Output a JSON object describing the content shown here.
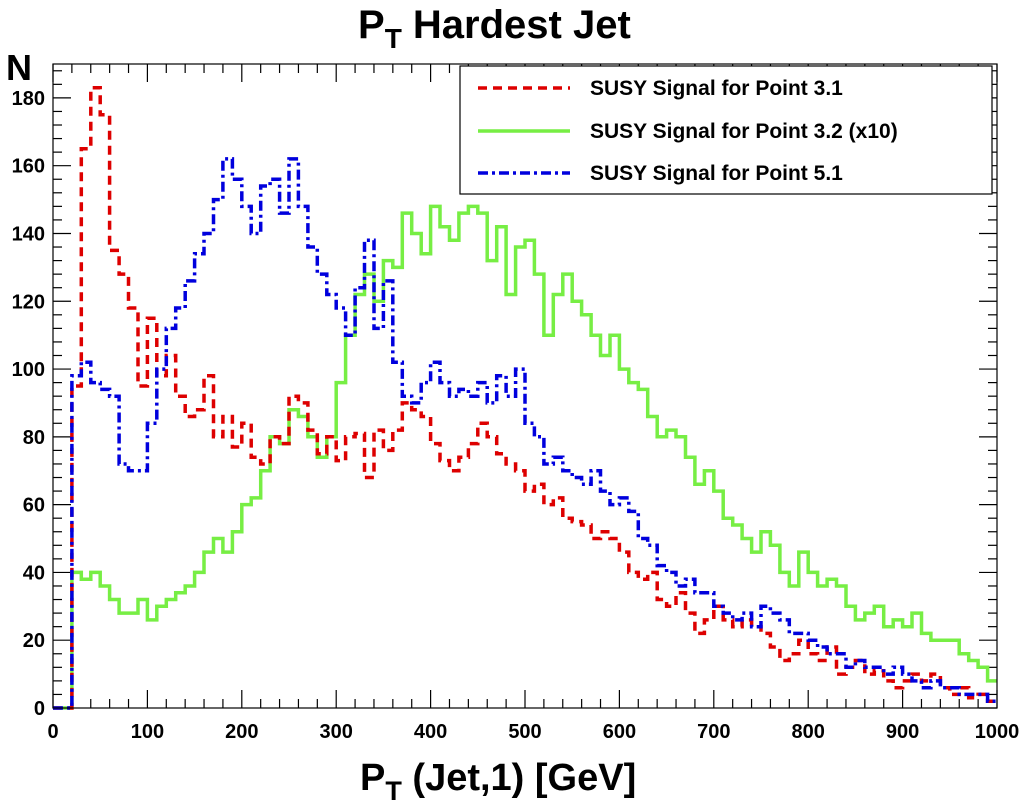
{
  "chart_data": {
    "type": "line",
    "title_main": "P",
    "title_sub": "T",
    "title_rest": " Hardest Jet",
    "title": "PT Hardest Jet",
    "xlabel_main": "P",
    "xlabel_sub": "T",
    "xlabel_rest": " (Jet,1) [GeV]",
    "xlabel": "PT (Jet,1) [GeV]",
    "ylabel": "N",
    "xlim": [
      0,
      1000
    ],
    "ylim": [
      0,
      190
    ],
    "xticks": [
      0,
      100,
      200,
      300,
      400,
      500,
      600,
      700,
      800,
      900,
      1000
    ],
    "xtick_labels": [
      "0",
      "100",
      "200",
      "300",
      "400",
      "500",
      "600",
      "700",
      "800",
      "900",
      "1000"
    ],
    "yticks": [
      0,
      20,
      40,
      60,
      80,
      100,
      120,
      140,
      160,
      180
    ],
    "ytick_labels": [
      "0",
      "20",
      "40",
      "60",
      "80",
      "100",
      "120",
      "140",
      "160",
      "180"
    ],
    "bin_width": 10,
    "legend_position": "top-right",
    "series": [
      {
        "name": "SUSY Signal for Point 3.1",
        "color": "#dd0000",
        "style": "dashed",
        "values": [
          0,
          0,
          95,
          165,
          183,
          175,
          135,
          128,
          118,
          95,
          115,
          98,
          104,
          92,
          86,
          88,
          98,
          80,
          86,
          77,
          84,
          74,
          72,
          80,
          78,
          92,
          90,
          82,
          75,
          80,
          73,
          80,
          81,
          68,
          82,
          76,
          82,
          90,
          88,
          86,
          78,
          73,
          70,
          74,
          78,
          84,
          80,
          75,
          72,
          70,
          64,
          66,
          60,
          62,
          56,
          55,
          54,
          50,
          52,
          50,
          46,
          40,
          38,
          40,
          32,
          30,
          34,
          28,
          22,
          26,
          30,
          26,
          24,
          26,
          24,
          22,
          18,
          14,
          16,
          20,
          16,
          14,
          18,
          10,
          12,
          14,
          10,
          11,
          8,
          6,
          8,
          10,
          8,
          10,
          6,
          4,
          6,
          3,
          4,
          2
        ]
      },
      {
        "name": "SUSY Signal for Point 3.2 (x10)",
        "color": "#77ee44",
        "style": "solid",
        "values": [
          0,
          0,
          40,
          38,
          40,
          36,
          32,
          28,
          28,
          32,
          26,
          30,
          32,
          34,
          36,
          40,
          46,
          50,
          46,
          52,
          60,
          62,
          70,
          80,
          78,
          88,
          86,
          80,
          74,
          80,
          96,
          110,
          122,
          128,
          120,
          132,
          130,
          146,
          140,
          134,
          148,
          142,
          138,
          146,
          148,
          146,
          132,
          142,
          122,
          136,
          138,
          128,
          110,
          122,
          128,
          120,
          116,
          110,
          104,
          110,
          100,
          96,
          94,
          86,
          80,
          82,
          80,
          74,
          66,
          70,
          64,
          56,
          54,
          50,
          46,
          52,
          48,
          40,
          36,
          46,
          40,
          36,
          38,
          36,
          30,
          26,
          28,
          30,
          24,
          26,
          24,
          28,
          22,
          20,
          20,
          20,
          16,
          14,
          12,
          8
        ]
      },
      {
        "name": "SUSY Signal for Point 5.1",
        "color": "#0000dd",
        "style": "dashdot",
        "values": [
          0,
          0,
          98,
          102,
          96,
          94,
          92,
          72,
          70,
          70,
          84,
          100,
          112,
          118,
          126,
          134,
          140,
          150,
          162,
          156,
          148,
          140,
          154,
          156,
          146,
          162,
          148,
          136,
          128,
          122,
          118,
          110,
          124,
          138,
          112,
          126,
          102,
          92,
          90,
          96,
          102,
          96,
          92,
          94,
          92,
          96,
          90,
          98,
          92,
          100,
          84,
          80,
          72,
          74,
          70,
          68,
          66,
          70,
          64,
          60,
          62,
          58,
          50,
          48,
          42,
          40,
          36,
          38,
          34,
          34,
          30,
          28,
          26,
          28,
          24,
          30,
          28,
          26,
          22,
          22,
          20,
          18,
          16,
          16,
          12,
          14,
          12,
          12,
          10,
          12,
          10,
          8,
          6,
          8,
          6,
          6,
          4,
          4,
          4,
          2
        ]
      }
    ]
  }
}
